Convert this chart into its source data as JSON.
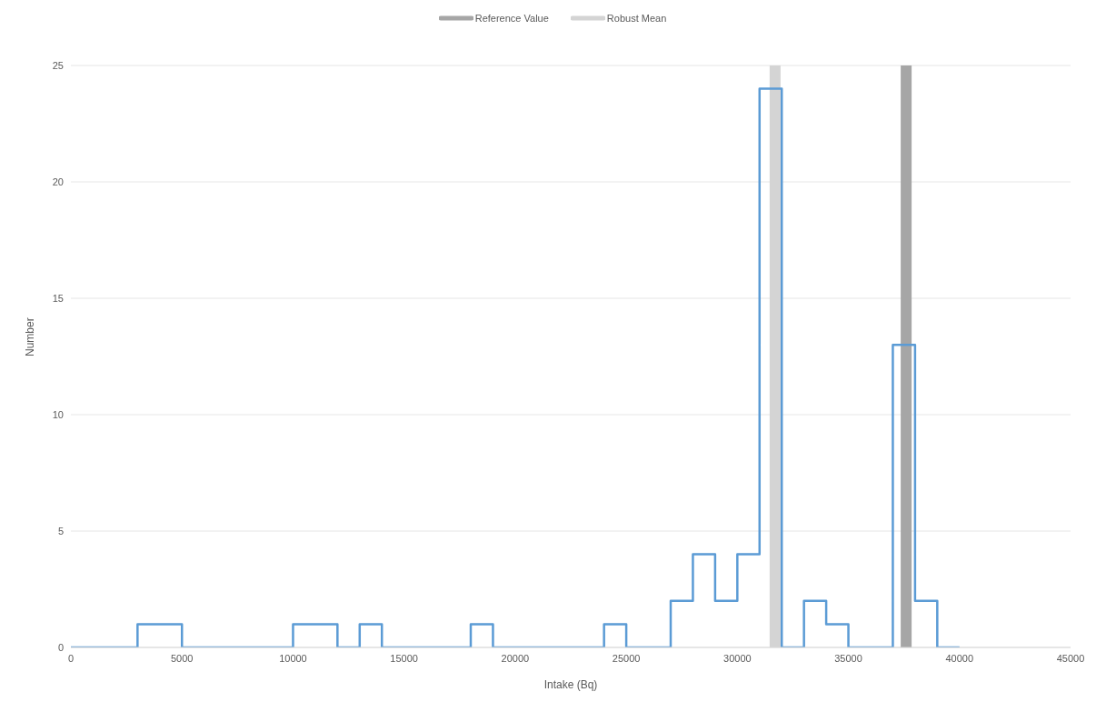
{
  "chart_data": {
    "type": "step",
    "xlabel": "Intake (Bq)",
    "ylabel": "Number",
    "xlim": [
      0,
      45000
    ],
    "xticks": [
      0,
      5000,
      10000,
      15000,
      20000,
      25000,
      30000,
      35000,
      40000,
      45000
    ],
    "ylim": [
      0,
      25
    ],
    "yticks": [
      0,
      5,
      10,
      15,
      20,
      25
    ],
    "grid": "y",
    "legend": "top",
    "marker": "none",
    "series": [
      {
        "color": "#5b9bd5",
        "x": [
          0,
          1000,
          2000,
          3000,
          4000,
          5000,
          6000,
          7000,
          8000,
          9000,
          10000,
          11000,
          12000,
          13000,
          14000,
          15000,
          16000,
          17000,
          18000,
          19000,
          20000,
          21000,
          22000,
          23000,
          24000,
          25000,
          26000,
          27000,
          28000,
          29000,
          30000,
          31000,
          32000,
          33000,
          34000,
          35000,
          36000,
          37000,
          38000,
          39000,
          40000
        ],
        "values": [
          0,
          0,
          0,
          1,
          1,
          0,
          0,
          0,
          0,
          0,
          1,
          1,
          0,
          1,
          0,
          0,
          0,
          0,
          1,
          0,
          0,
          0,
          0,
          0,
          1,
          0,
          0,
          2,
          4,
          2,
          4,
          24,
          0,
          2,
          1,
          0,
          0,
          13,
          2,
          0,
          0
        ]
      },
      {
        "type": "line",
        "name": "Reference Value",
        "color": "#a6a6a6",
        "x": [
          37600,
          37600
        ],
        "values": [
          0,
          25
        ]
      },
      {
        "type": "line",
        "name": "Robust Mean",
        "color": "#d4d4d4",
        "x": [
          31700,
          31700
        ],
        "values": [
          0,
          25
        ]
      }
    ]
  }
}
